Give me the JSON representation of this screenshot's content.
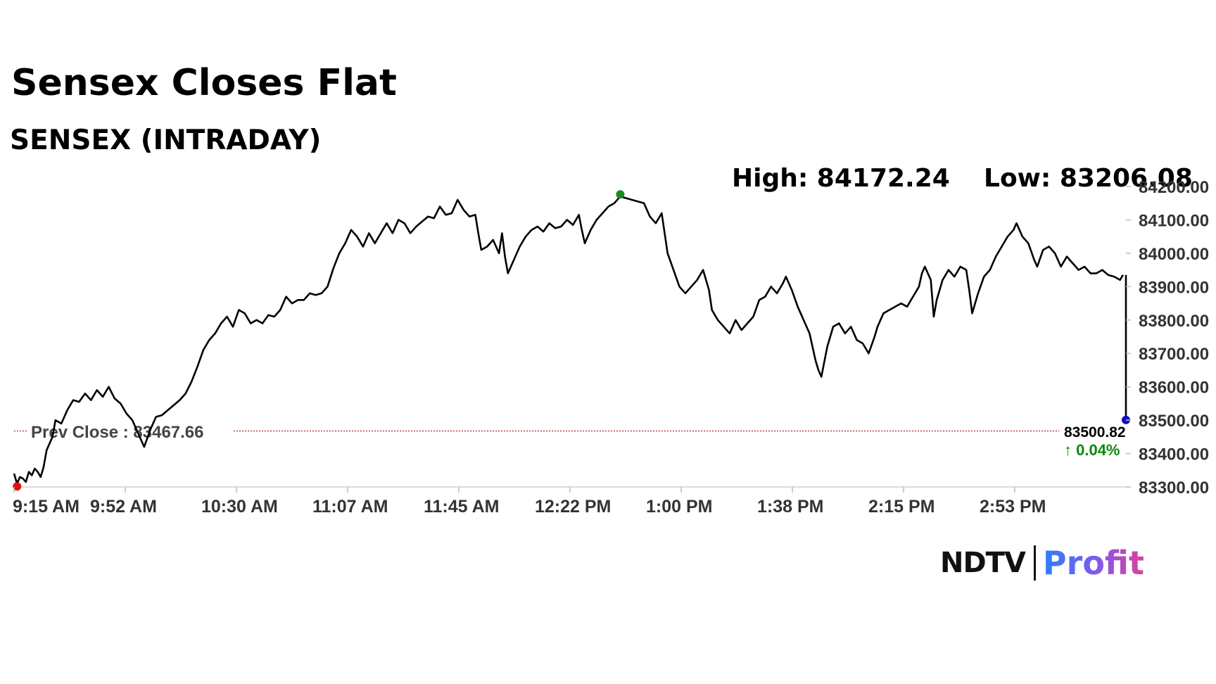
{
  "title": "Sensex Closes Flat",
  "subtitle": "SENSEX (INTRADAY)",
  "brand": {
    "ndtv": "NDTV",
    "profit": "Profit"
  },
  "chart_data": {
    "type": "line",
    "high_label": "High: 84172.24",
    "low_label": "Low: 83206.08",
    "prev_close_label": "Prev Close : 83467.66",
    "prev_close": 83467.66,
    "last_value_label": "83500.82",
    "change_label": "↑ 0.04%",
    "ylim": [
      83300,
      84200
    ],
    "yticks": [
      "83300.00",
      "83400.00",
      "83500.00",
      "83600.00",
      "83700.00",
      "83800.00",
      "83900.00",
      "84000.00",
      "84100.00",
      "84200.00"
    ],
    "xticks": [
      "9:15 AM",
      "9:52 AM",
      "10:30 AM",
      "11:07 AM",
      "11:45 AM",
      "12:22 PM",
      "1:00 PM",
      "1:38 PM",
      "2:15 PM",
      "2:53 PM"
    ],
    "x_range_minutes": [
      0,
      376
    ],
    "series": [
      {
        "line_color": "#000000",
        "points": [
          [
            0,
            83340
          ],
          [
            1,
            83310
          ],
          [
            2,
            83330
          ],
          [
            3,
            83325
          ],
          [
            4,
            83315
          ],
          [
            5,
            83345
          ],
          [
            6,
            83335
          ],
          [
            7,
            83355
          ],
          [
            8,
            83345
          ],
          [
            9,
            83330
          ],
          [
            10,
            83360
          ],
          [
            11,
            83410
          ],
          [
            13,
            83450
          ],
          [
            14,
            83500
          ],
          [
            16,
            83490
          ],
          [
            18,
            83530
          ],
          [
            20,
            83560
          ],
          [
            22,
            83555
          ],
          [
            24,
            83580
          ],
          [
            26,
            83560
          ],
          [
            28,
            83590
          ],
          [
            30,
            83570
          ],
          [
            32,
            83600
          ],
          [
            34,
            83565
          ],
          [
            36,
            83550
          ],
          [
            38,
            83520
          ],
          [
            40,
            83500
          ],
          [
            42,
            83460
          ],
          [
            44,
            83420
          ],
          [
            46,
            83470
          ],
          [
            48,
            83510
          ],
          [
            50,
            83515
          ],
          [
            52,
            83530
          ],
          [
            54,
            83545
          ],
          [
            56,
            83560
          ],
          [
            58,
            83580
          ],
          [
            60,
            83615
          ],
          [
            62,
            83660
          ],
          [
            64,
            83710
          ],
          [
            66,
            83740
          ],
          [
            68,
            83760
          ],
          [
            70,
            83790
          ],
          [
            72,
            83810
          ],
          [
            74,
            83780
          ],
          [
            76,
            83830
          ],
          [
            78,
            83820
          ],
          [
            80,
            83790
          ],
          [
            82,
            83800
          ],
          [
            84,
            83790
          ],
          [
            86,
            83815
          ],
          [
            88,
            83810
          ],
          [
            90,
            83830
          ],
          [
            92,
            83870
          ],
          [
            94,
            83850
          ],
          [
            96,
            83860
          ],
          [
            98,
            83860
          ],
          [
            100,
            83880
          ],
          [
            102,
            83875
          ],
          [
            104,
            83880
          ],
          [
            106,
            83900
          ],
          [
            108,
            83955
          ],
          [
            110,
            84000
          ],
          [
            112,
            84030
          ],
          [
            114,
            84070
          ],
          [
            116,
            84050
          ],
          [
            118,
            84020
          ],
          [
            120,
            84060
          ],
          [
            122,
            84030
          ],
          [
            124,
            84060
          ],
          [
            126,
            84090
          ],
          [
            128,
            84060
          ],
          [
            130,
            84100
          ],
          [
            132,
            84090
          ],
          [
            134,
            84060
          ],
          [
            136,
            84080
          ],
          [
            138,
            84095
          ],
          [
            140,
            84110
          ],
          [
            142,
            84105
          ],
          [
            144,
            84140
          ],
          [
            146,
            84115
          ],
          [
            148,
            84120
          ],
          [
            150,
            84160
          ],
          [
            152,
            84130
          ],
          [
            154,
            84110
          ],
          [
            156,
            84115
          ],
          [
            157,
            84060
          ],
          [
            158,
            84010
          ],
          [
            160,
            84020
          ],
          [
            162,
            84040
          ],
          [
            164,
            84000
          ],
          [
            165,
            84060
          ],
          [
            166,
            83990
          ],
          [
            167,
            83940
          ],
          [
            169,
            83980
          ],
          [
            171,
            84020
          ],
          [
            173,
            84050
          ],
          [
            175,
            84070
          ],
          [
            177,
            84080
          ],
          [
            179,
            84065
          ],
          [
            181,
            84090
          ],
          [
            183,
            84075
          ],
          [
            185,
            84080
          ],
          [
            187,
            84100
          ],
          [
            189,
            84085
          ],
          [
            191,
            84115
          ],
          [
            192,
            84070
          ],
          [
            193,
            84030
          ],
          [
            195,
            84070
          ],
          [
            197,
            84100
          ],
          [
            199,
            84120
          ],
          [
            201,
            84140
          ],
          [
            203,
            84150
          ],
          [
            205,
            84170
          ],
          [
            207,
            84165
          ],
          [
            209,
            84160
          ],
          [
            211,
            84155
          ],
          [
            213,
            84150
          ],
          [
            215,
            84110
          ],
          [
            217,
            84090
          ],
          [
            219,
            84120
          ],
          [
            220,
            84060
          ],
          [
            221,
            84000
          ],
          [
            223,
            83950
          ],
          [
            225,
            83900
          ],
          [
            227,
            83880
          ],
          [
            229,
            83900
          ],
          [
            231,
            83920
          ],
          [
            233,
            83950
          ],
          [
            235,
            83890
          ],
          [
            236,
            83830
          ],
          [
            238,
            83800
          ],
          [
            240,
            83780
          ],
          [
            242,
            83760
          ],
          [
            244,
            83800
          ],
          [
            246,
            83770
          ],
          [
            248,
            83790
          ],
          [
            250,
            83810
          ],
          [
            252,
            83860
          ],
          [
            254,
            83870
          ],
          [
            256,
            83900
          ],
          [
            258,
            83880
          ],
          [
            260,
            83910
          ],
          [
            261,
            83930
          ],
          [
            263,
            83890
          ],
          [
            265,
            83840
          ],
          [
            267,
            83800
          ],
          [
            269,
            83760
          ],
          [
            270,
            83720
          ],
          [
            271,
            83680
          ],
          [
            272,
            83650
          ],
          [
            273,
            83630
          ],
          [
            275,
            83720
          ],
          [
            277,
            83780
          ],
          [
            279,
            83790
          ],
          [
            281,
            83760
          ],
          [
            283,
            83780
          ],
          [
            285,
            83740
          ],
          [
            287,
            83730
          ],
          [
            289,
            83700
          ],
          [
            291,
            83750
          ],
          [
            292,
            83780
          ],
          [
            294,
            83820
          ],
          [
            296,
            83830
          ],
          [
            298,
            83840
          ],
          [
            300,
            83850
          ],
          [
            302,
            83840
          ],
          [
            304,
            83870
          ],
          [
            306,
            83900
          ],
          [
            307,
            83940
          ],
          [
            308,
            83960
          ],
          [
            310,
            83920
          ],
          [
            311,
            83810
          ],
          [
            312,
            83860
          ],
          [
            314,
            83920
          ],
          [
            316,
            83950
          ],
          [
            318,
            83930
          ],
          [
            320,
            83960
          ],
          [
            322,
            83950
          ],
          [
            323,
            83890
          ],
          [
            324,
            83820
          ],
          [
            326,
            83880
          ],
          [
            328,
            83930
          ],
          [
            330,
            83950
          ],
          [
            332,
            83990
          ],
          [
            334,
            84020
          ],
          [
            336,
            84050
          ],
          [
            338,
            84070
          ],
          [
            339,
            84090
          ],
          [
            341,
            84050
          ],
          [
            343,
            84030
          ],
          [
            345,
            83980
          ],
          [
            346,
            83960
          ],
          [
            348,
            84010
          ],
          [
            350,
            84020
          ],
          [
            352,
            84000
          ],
          [
            354,
            83960
          ],
          [
            356,
            83990
          ],
          [
            358,
            83970
          ],
          [
            360,
            83950
          ],
          [
            362,
            83960
          ],
          [
            364,
            83940
          ],
          [
            366,
            83940
          ],
          [
            368,
            83950
          ],
          [
            370,
            83935
          ],
          [
            372,
            83930
          ],
          [
            374,
            83920
          ],
          [
            375,
            83935
          ],
          [
            376,
            83500.82
          ]
        ]
      }
    ],
    "markers": {
      "low_color": "#e01010",
      "high_color": "#1a8a1a",
      "last_color": "#1010c0"
    }
  }
}
